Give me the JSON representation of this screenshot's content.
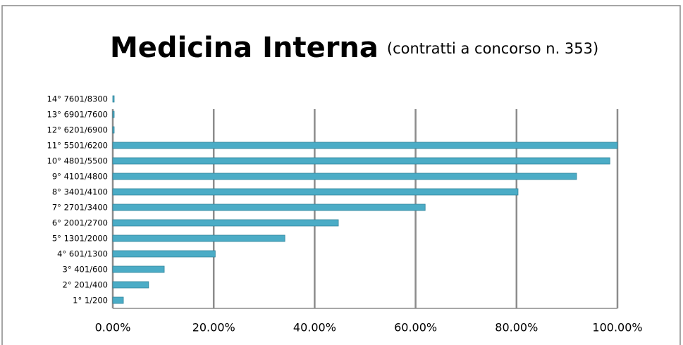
{
  "chart_data": {
    "type": "bar",
    "orientation": "horizontal",
    "title": "Medicina Interna",
    "subtitle": "(contratti a concorso n. 353)",
    "categories": [
      "1° 1/200",
      "2° 201/400",
      "3° 401/600",
      "4° 601/1300",
      "5° 1301/2000",
      "6° 2001/2700",
      "7° 2701/3400",
      "8° 3401/4100",
      "9° 4101/4800",
      "10° 4801/5500",
      "11° 5501/6200",
      "12° 6201/6900",
      "13° 6901/7600",
      "14° 7601/8300"
    ],
    "values": [
      2.1,
      7.1,
      10.2,
      20.3,
      34.1,
      44.7,
      61.9,
      80.3,
      91.9,
      98.5,
      100,
      0,
      0,
      0
    ],
    "color": "#4bacc6",
    "xlim": [
      0,
      100
    ],
    "xticks": [
      {
        "value": 0,
        "label": "0.00%"
      },
      {
        "value": 20,
        "label": "20.00%"
      },
      {
        "value": 40,
        "label": "40.00%"
      },
      {
        "value": 60,
        "label": "60.00%"
      },
      {
        "value": 80,
        "label": "80.00%"
      },
      {
        "value": 100,
        "label": "100.00%"
      }
    ],
    "grid": true
  }
}
